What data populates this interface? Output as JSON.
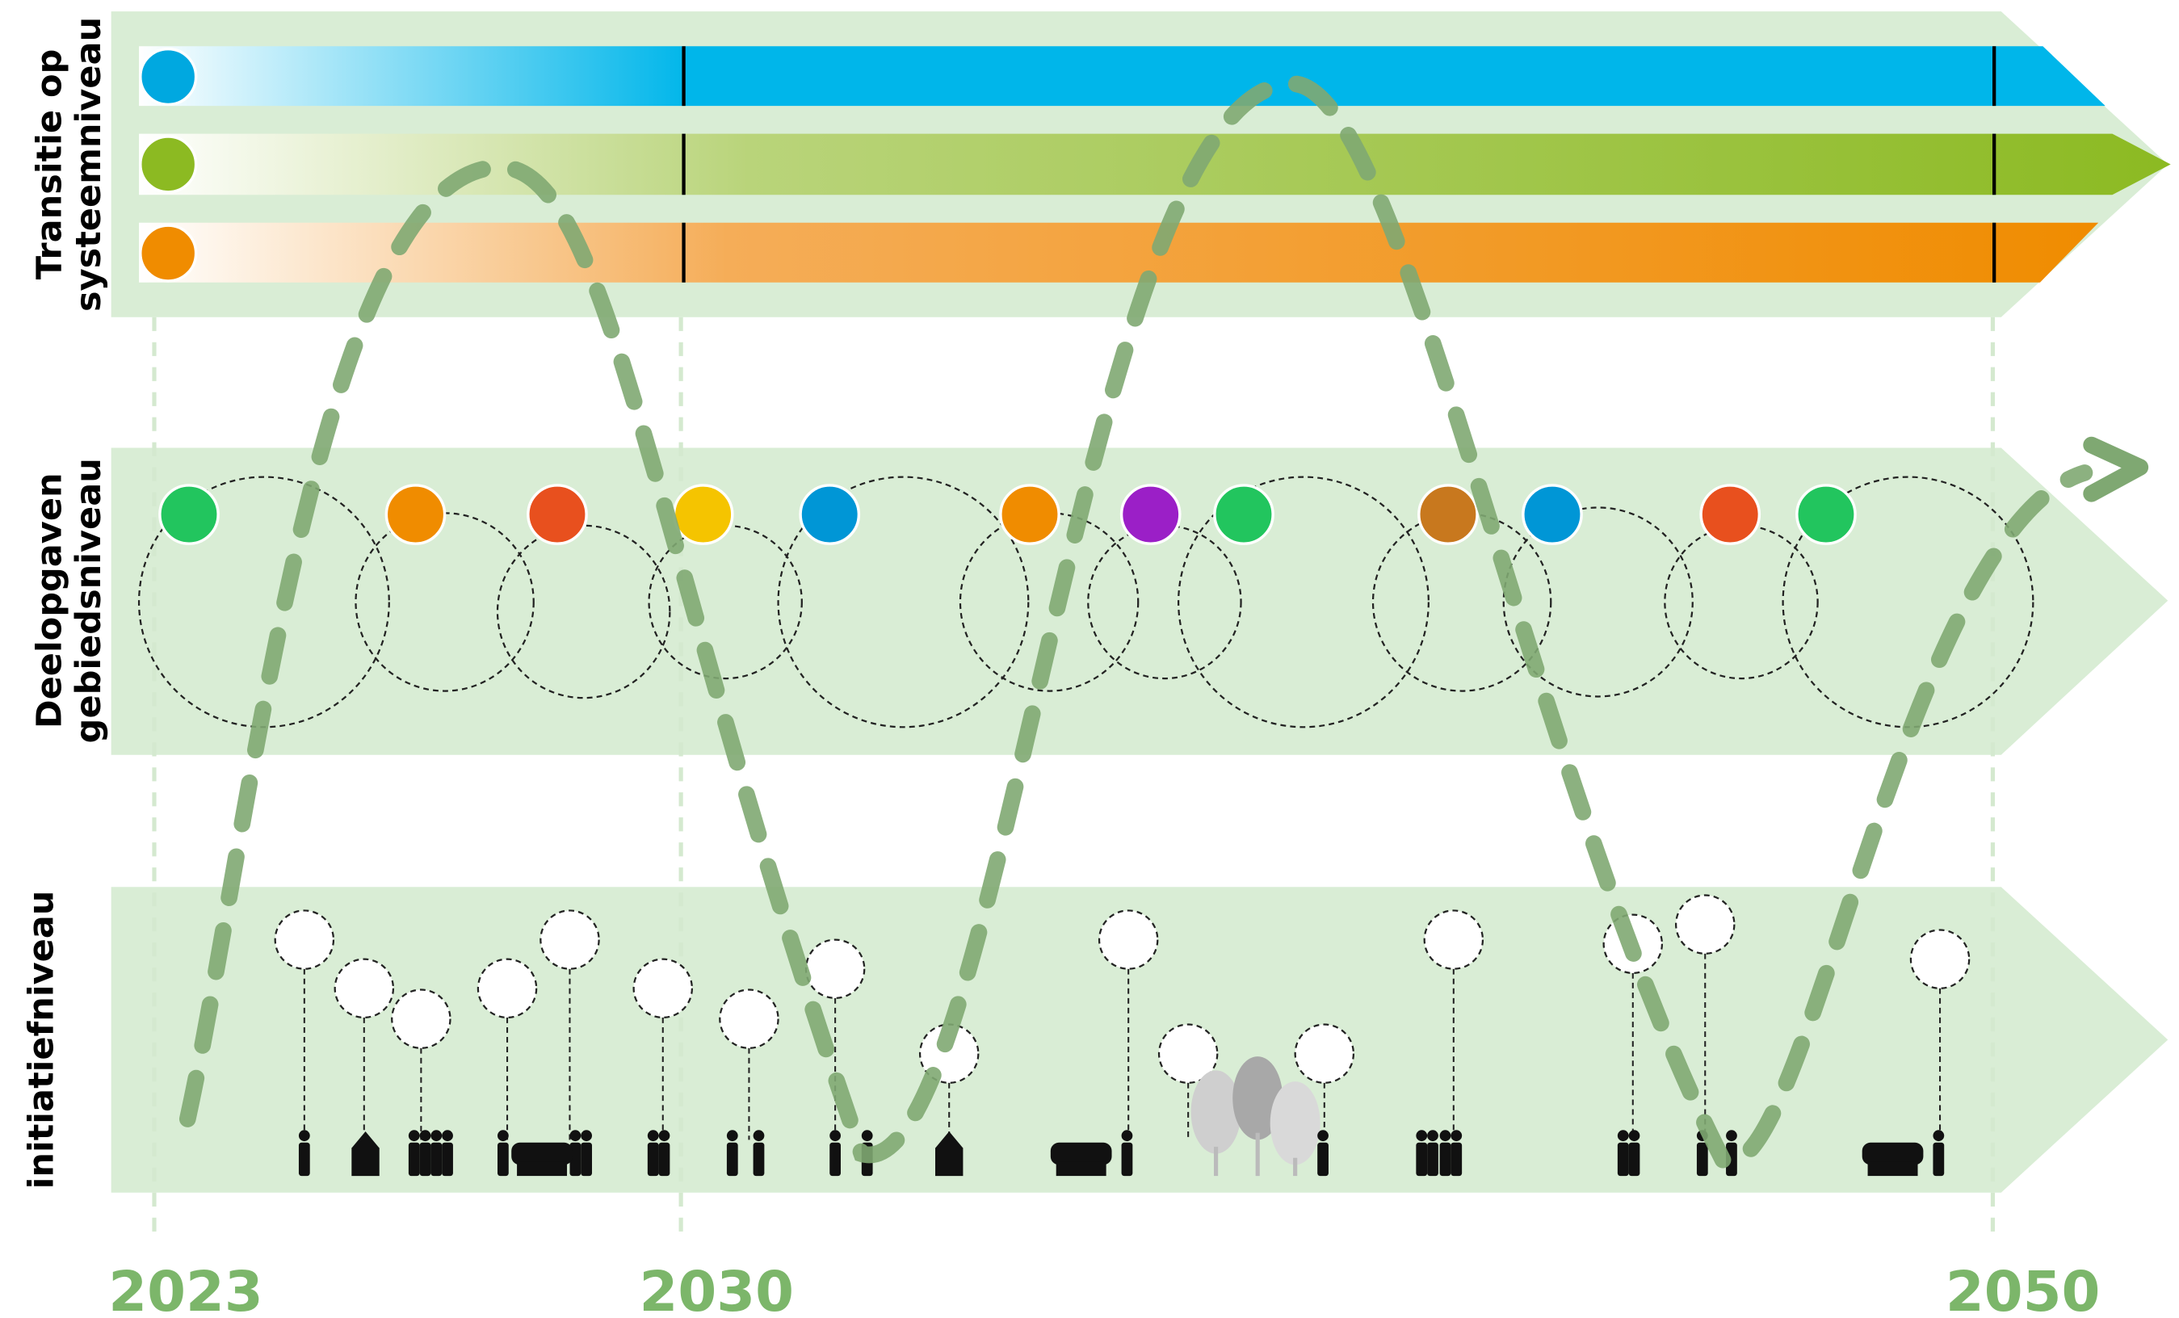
{
  "levels": [
    {
      "label": [
        "Transitie op",
        "systeemniveau"
      ]
    },
    {
      "label": [
        "Deelopgaven",
        "gebiedsniveau"
      ]
    },
    {
      "label": [
        "initiatiefniveau"
      ]
    }
  ],
  "years": [
    "2023",
    "2030",
    "2050"
  ]
}
